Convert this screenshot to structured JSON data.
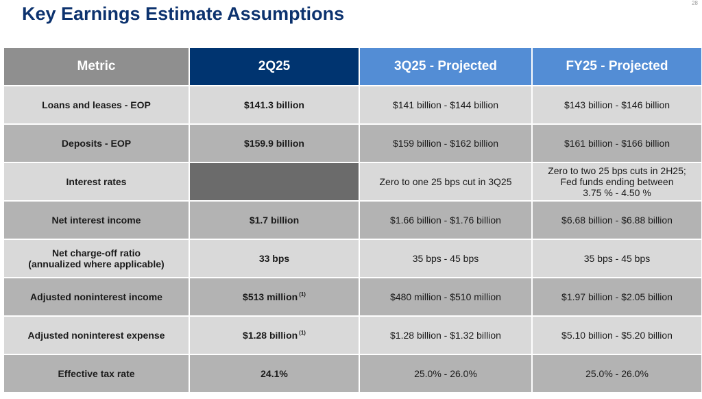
{
  "slide": {
    "title": "Key Earnings Estimate Assumptions",
    "page_number": "28"
  },
  "colors": {
    "title": "#0c326e",
    "header_metric": "#8f8f8f",
    "header_current": "#003470",
    "header_projected": "#538dd5",
    "row_light": "#d9d9d9",
    "row_dark": "#b3b3b3",
    "blank_cell": "#6b6b6b"
  },
  "table": {
    "headers": [
      "Metric",
      "2Q25",
      "3Q25 - Projected",
      "FY25 - Projected"
    ],
    "rows": [
      {
        "metric": "Loans and leases - EOP",
        "current": "$141.3 billion",
        "footnote": "",
        "q3": "$141 billion - $144 billion",
        "fy": "$143 billion - $146 billion"
      },
      {
        "metric": "Deposits - EOP",
        "current": "$159.9 billion",
        "footnote": "",
        "q3": "$159 billion - $162 billion",
        "fy": "$161 billion - $166 billion"
      },
      {
        "metric": "Interest rates",
        "current": "",
        "footnote": "",
        "q3": "Zero to one 25 bps cut in 3Q25",
        "fy": "Zero to two 25 bps cuts in 2H25;\nFed funds ending between\n3.75 % - 4.50 %"
      },
      {
        "metric": "Net interest income",
        "current": "$1.7 billion",
        "footnote": "",
        "q3": "$1.66 billion - $1.76 billion",
        "fy": "$6.68 billion - $6.88 billion"
      },
      {
        "metric": "Net charge-off ratio\n(annualized where applicable)",
        "current": "33 bps",
        "footnote": "",
        "q3": "35 bps - 45 bps",
        "fy": "35 bps - 45 bps"
      },
      {
        "metric": "Adjusted noninterest income",
        "current": "$513 million",
        "footnote": "(1)",
        "q3": "$480 million - $510 million",
        "fy": "$1.97 billion - $2.05 billion"
      },
      {
        "metric": "Adjusted noninterest expense",
        "current": "$1.28 billion",
        "footnote": "(1)",
        "q3": "$1.28 billion - $1.32 billion",
        "fy": "$5.10 billion - $5.20 billion"
      },
      {
        "metric": "Effective tax rate",
        "current": "24.1%",
        "footnote": "",
        "q3": "25.0% - 26.0%",
        "fy": "25.0% - 26.0%"
      }
    ]
  }
}
